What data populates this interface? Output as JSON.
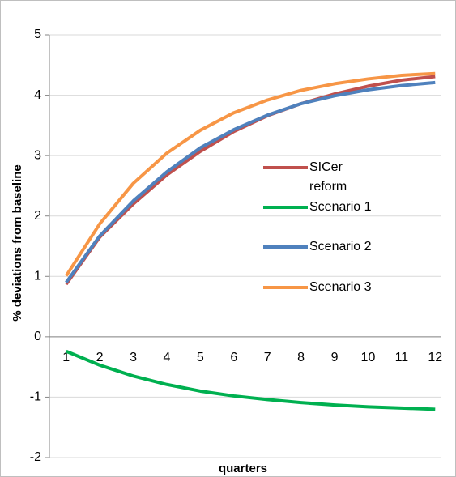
{
  "chart_data": {
    "type": "line",
    "y_label": "% deviations from baseline",
    "x_label": "quarters",
    "categories": [
      "1",
      "2",
      "3",
      "4",
      "5",
      "6",
      "7",
      "8",
      "9",
      "10",
      "11",
      "12"
    ],
    "series": [
      {
        "name": "SICer reform",
        "color": "#c0504d",
        "values": [
          0.87,
          1.65,
          2.2,
          2.68,
          3.07,
          3.4,
          3.66,
          3.86,
          4.02,
          4.15,
          4.25,
          4.31
        ]
      },
      {
        "name": "Scenario 1",
        "color": "#00b050",
        "values": [
          -0.24,
          -0.47,
          -0.65,
          -0.79,
          -0.9,
          -0.98,
          -1.04,
          -1.09,
          -1.13,
          -1.16,
          -1.18,
          -1.2
        ]
      },
      {
        "name": "Scenario 2",
        "color": "#4f81bd",
        "values": [
          0.9,
          1.67,
          2.25,
          2.73,
          3.13,
          3.43,
          3.67,
          3.86,
          3.99,
          4.09,
          4.16,
          4.21
        ]
      },
      {
        "name": "Scenario 3",
        "color": "#f79646",
        "values": [
          1.01,
          1.87,
          2.54,
          3.04,
          3.42,
          3.71,
          3.92,
          4.08,
          4.19,
          4.27,
          4.33,
          4.36
        ]
      }
    ],
    "ylim": [
      -2,
      5
    ],
    "yticks": [
      -2,
      -1,
      0,
      1,
      2,
      3,
      4,
      5
    ],
    "grid": true
  }
}
